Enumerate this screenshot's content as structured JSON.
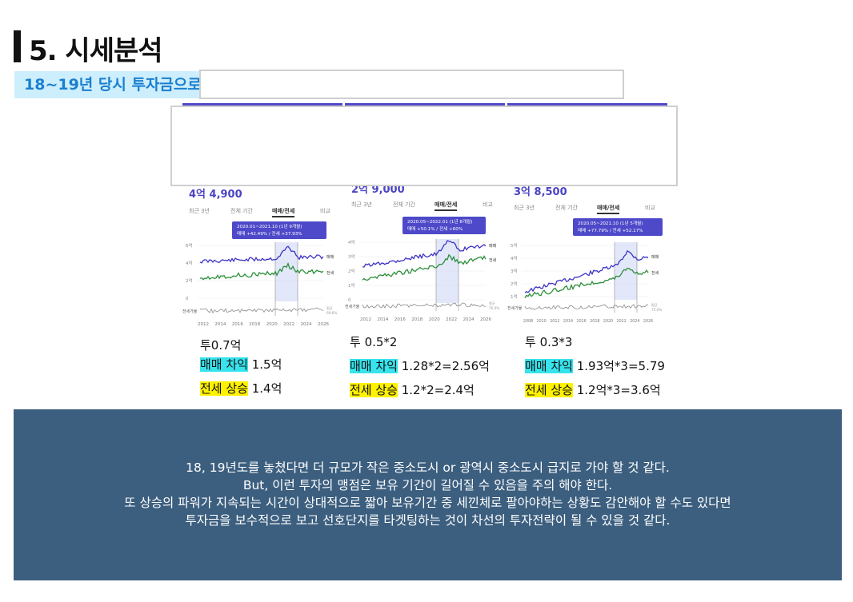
{
  "header": {
    "title": "5. 시세분석",
    "subtitle": "18~19년 당시 투자금으로"
  },
  "panels": [
    {
      "price": "4억 4,900",
      "tabs": [
        "최근 3년",
        "전체 기간",
        "매매/전세",
        "비교"
      ],
      "tooltip": [
        "2020.01~2021.10 (1년 9개월)",
        "매매 +42.49%  /  전세 +37.93%"
      ],
      "y_ticks": [
        "6억",
        "4억",
        "2억",
        "0"
      ],
      "x_ticks": [
        "2012",
        "2014",
        "2016",
        "2018",
        "2020",
        "2022",
        "2024",
        "2026"
      ],
      "legend": [
        "매매",
        "전세"
      ],
      "gap_label": "전세가율",
      "gap_value": [
        "평균",
        "69.6%"
      ],
      "notes": {
        "invest": "투0.7억",
        "sale_label": "매매 차익",
        "sale_value": " 1.5억",
        "jeonse_label": "전세 상승",
        "jeonse_value": " 1.4억"
      }
    },
    {
      "price": "2억 9,000",
      "tabs": [
        "최근 3년",
        "전체 기간",
        "매매/전세",
        "비교"
      ],
      "tooltip": [
        "2020.05~2022.01 (1년 8개월)",
        "매매 +50.1%  /  전세 +60%"
      ],
      "y_ticks": [
        "4억",
        "3억",
        "2억",
        "1억",
        "0"
      ],
      "x_ticks": [
        "2012",
        "2014",
        "2016",
        "2018",
        "2020",
        "2022",
        "2024",
        "2026"
      ],
      "legend": [
        "매매",
        "전세"
      ],
      "gap_label": "전세가율",
      "gap_value": [
        "평균",
        "76.0%"
      ],
      "notes": {
        "invest": "투 0.5*2",
        "sale_label": "매매 차익",
        "sale_value": " 1.28*2=2.56억",
        "jeonse_label": "전세 상승",
        "jeonse_value": " 1.2*2=2.4억"
      }
    },
    {
      "price": "3억 8,500",
      "tabs": [
        "최근 3년",
        "전체 기간",
        "매매/전세",
        "비교"
      ],
      "tooltip": [
        "2020.05~2021.10 (1년 5개월)",
        "매매 +77.79%  /  전세 +52.17%"
      ],
      "y_ticks": [
        "5억",
        "4억",
        "3억",
        "2억",
        "1억"
      ],
      "x_ticks": [
        "2008",
        "2010",
        "2012",
        "2014",
        "2016",
        "2018",
        "2020",
        "2022",
        "2024",
        "2026"
      ],
      "legend": [
        "매매",
        "전세"
      ],
      "gap_label": "전세가율",
      "gap_value": [
        "평균",
        "75.0%"
      ],
      "notes": {
        "invest": "투 0.3*3",
        "sale_label": "매매 차익",
        "sale_value": " 1.93억*3=5.79",
        "jeonse_label": "전세 상승",
        "jeonse_value": " 1.2억*3=3.6억"
      }
    }
  ],
  "summary": [
    "18, 19년도를 놓쳤다면 더 규모가 작은 중소도시 or 광역시 중소도시 급지로 가야 할 것 같다.",
    "But, 이런 투자의 맹점은 보유 기간이 길어질 수 있음을 주의 해야 한다.",
    "또 상승의 파워가 지속되는 시간이 상대적으로 짧아 보유기간 중 세낀체로 팔아야하는 상황도 감안해야 할 수도 있다면",
    "투자금을 보수적으로 보고 선호단지를 타겟팅하는 것이 차선의 투자전략이 될 수 있을 것 같다."
  ],
  "colors": {
    "sale_line": "#3d33c7",
    "jeonse_line": "#2c8f3a",
    "highlight_cyan": "#37e3ec",
    "highlight_yellow": "#fff200",
    "summary_bg": "#3c5f7f"
  }
}
